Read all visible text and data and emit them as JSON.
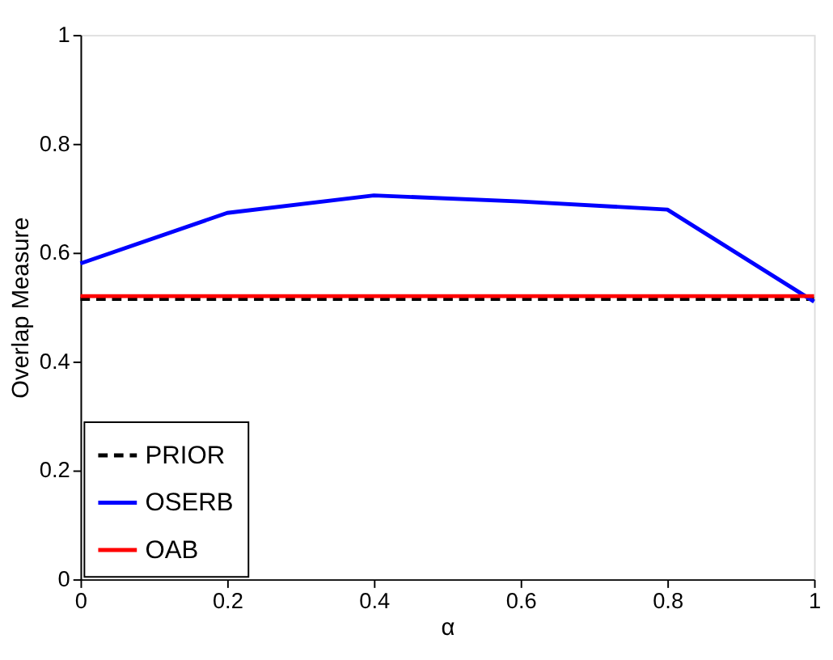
{
  "chart_data": {
    "type": "line",
    "xlabel": "α",
    "ylabel": "Overlap Measure",
    "xlim": [
      0,
      1
    ],
    "ylim": [
      0,
      1
    ],
    "xticks": [
      0,
      0.2,
      0.4,
      0.6,
      0.8,
      1
    ],
    "yticks": [
      0,
      0.2,
      0.4,
      0.6,
      0.8,
      1
    ],
    "x": [
      0,
      0.2,
      0.4,
      0.6,
      0.8,
      1
    ],
    "grid": false,
    "legend": "bottom left",
    "marker": "none",
    "series": [
      {
        "name": "PRIOR",
        "color": "#000000",
        "line_style": "dashed",
        "values": [
          0.515,
          0.515,
          0.515,
          0.515,
          0.515,
          0.515
        ]
      },
      {
        "name": "OSERB",
        "color": "#0000ff",
        "line_style": "solid",
        "values": [
          0.58,
          0.673,
          0.705,
          0.694,
          0.679,
          0.51
        ]
      },
      {
        "name": "OAB",
        "color": "#ff0000",
        "line_style": "solid",
        "values": [
          0.52,
          0.52,
          0.52,
          0.52,
          0.52,
          0.52
        ]
      }
    ]
  }
}
